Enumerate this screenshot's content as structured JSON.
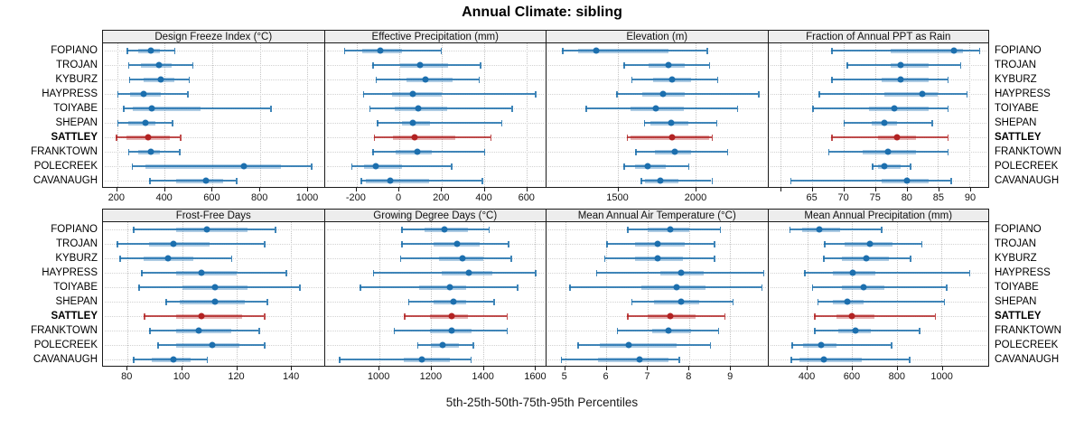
{
  "title": "Annual Climate: sibling",
  "footer": "5th-25th-50th-75th-95th Percentiles",
  "stations": [
    "FOPIANO",
    "TROJAN",
    "KYBURZ",
    "HAYPRESS",
    "TOIYABE",
    "SHEPAN",
    "SATTLEY",
    "FRANKTOWN",
    "POLECREEK",
    "CAVANAUGH"
  ],
  "highlight_station": "SATTLEY",
  "colors": {
    "series_line": "#1f71ad",
    "series_dot": "#1c6fae",
    "highlight_line": "#b22222",
    "highlight_dot": "#b22222",
    "strip_bg": "#ededed",
    "grid": "#c4c4c4"
  },
  "chart_data": {
    "type": "scatter",
    "mark": "median-dot-with-5-25-50-75-95-percentile-whiskers",
    "title": "Annual Climate: sibling",
    "xlabel": "5th-25th-50th-75th-95th Percentiles",
    "categories": [
      "FOPIANO",
      "TROJAN",
      "KYBURZ",
      "HAYPRESS",
      "TOIYABE",
      "SHEPAN",
      "SATTLEY",
      "FRANKTOWN",
      "POLECREEK",
      "CAVANAUGH"
    ],
    "percentiles": [
      "5th",
      "25th",
      "50th",
      "75th",
      "95th"
    ],
    "panels": [
      {
        "title": "Design Freeze Index (°C)",
        "xlim": [
          140,
          1070
        ],
        "ticks": [
          200,
          400,
          600,
          800,
          1000
        ],
        "tick_labels": [
          "200",
          "400",
          "600",
          "800",
          "1000"
        ],
        "values": [
          [
            240,
            290,
            340,
            380,
            440
          ],
          [
            245,
            300,
            375,
            430,
            515
          ],
          [
            250,
            310,
            385,
            440,
            500
          ],
          [
            200,
            255,
            310,
            385,
            495
          ],
          [
            225,
            265,
            345,
            550,
            845
          ],
          [
            200,
            245,
            320,
            360,
            430
          ],
          [
            195,
            240,
            330,
            420,
            465
          ],
          [
            245,
            290,
            340,
            380,
            460
          ],
          [
            260,
            320,
            735,
            890,
            1015
          ],
          [
            335,
            450,
            575,
            645,
            700
          ]
        ]
      },
      {
        "title": "Effective Precipitation (mm)",
        "xlim": [
          -350,
          690
        ],
        "ticks": [
          -200,
          0,
          200,
          400,
          600
        ],
        "tick_labels": [
          "-200",
          "0",
          "200",
          "400",
          "600"
        ],
        "values": [
          [
            -260,
            -175,
            -90,
            15,
            195
          ],
          [
            -125,
            5,
            100,
            230,
            380
          ],
          [
            -110,
            35,
            125,
            250,
            375
          ],
          [
            -170,
            -35,
            65,
            200,
            640
          ],
          [
            -140,
            -20,
            90,
            225,
            530
          ],
          [
            -105,
            15,
            65,
            145,
            480
          ],
          [
            -120,
            -30,
            75,
            265,
            430
          ],
          [
            -125,
            -15,
            85,
            155,
            400
          ],
          [
            -225,
            -165,
            -110,
            15,
            245
          ],
          [
            -180,
            -155,
            -40,
            140,
            390
          ]
        ]
      },
      {
        "title": "Elevation (m)",
        "xlim": [
          1040,
          2460
        ],
        "ticks": [
          1500,
          2000
        ],
        "tick_labels": [
          "1500",
          "2000"
        ],
        "values": [
          [
            1140,
            1245,
            1360,
            1825,
            2070
          ],
          [
            1535,
            1695,
            1825,
            1930,
            2085
          ],
          [
            1585,
            1725,
            1850,
            1970,
            2135
          ],
          [
            1490,
            1655,
            1790,
            1930,
            2400
          ],
          [
            1290,
            1580,
            1745,
            1920,
            2265
          ],
          [
            1665,
            1705,
            1840,
            1950,
            2130
          ],
          [
            1555,
            1580,
            1845,
            2085,
            2100
          ],
          [
            1610,
            1735,
            1865,
            1970,
            2200
          ],
          [
            1535,
            1610,
            1690,
            1805,
            1950
          ],
          [
            1645,
            1675,
            1770,
            1890,
            2100
          ]
        ]
      },
      {
        "title": "Fraction of Annual PPT as Rain",
        "xlim": [
          58,
          93
        ],
        "ticks": [
          60,
          65,
          70,
          75,
          80,
          85,
          90
        ],
        "tick_labels": [
          "",
          "65",
          "70",
          "75",
          "80",
          "85",
          "90"
        ],
        "values": [
          [
            68,
            77.5,
            87.5,
            89,
            91.5
          ],
          [
            70.5,
            77.5,
            79,
            83.5,
            88.5
          ],
          [
            68,
            76,
            79,
            83.5,
            86.5
          ],
          [
            66,
            76.5,
            82.5,
            85,
            89.5
          ],
          [
            65,
            74,
            78,
            83.5,
            86.5
          ],
          [
            70,
            74.5,
            76.5,
            78.5,
            84
          ],
          [
            68,
            75.5,
            78.5,
            81.5,
            86.5
          ],
          [
            67.5,
            73,
            77,
            81.5,
            86.5
          ],
          [
            74.5,
            75.5,
            76.5,
            79,
            80.5
          ],
          [
            61.5,
            76,
            80,
            83.5,
            87
          ]
        ]
      },
      {
        "title": "Frost-Free Days",
        "xlim": [
          71,
          152
        ],
        "ticks": [
          80,
          100,
          120,
          140
        ],
        "tick_labels": [
          "80",
          "100",
          "120",
          "140"
        ],
        "values": [
          [
            82,
            98,
            109,
            124,
            134
          ],
          [
            76,
            88,
            97,
            110,
            130
          ],
          [
            77,
            86,
            95,
            104,
            118
          ],
          [
            85,
            98,
            107,
            120,
            138
          ],
          [
            84,
            100,
            112,
            124,
            143
          ],
          [
            94,
            99,
            112,
            123,
            131
          ],
          [
            86,
            98,
            107,
            122,
            130
          ],
          [
            88,
            98,
            106,
            118,
            128
          ],
          [
            91,
            98,
            111,
            121,
            130
          ],
          [
            82,
            89,
            97,
            103,
            109
          ]
        ]
      },
      {
        "title": "Growing Degree Days (°C)",
        "xlim": [
          790,
          1640
        ],
        "ticks": [
          1000,
          1200,
          1400,
          1600
        ],
        "tick_labels": [
          "1000",
          "1200",
          "1400",
          "1600"
        ],
        "values": [
          [
            1085,
            1175,
            1250,
            1340,
            1420
          ],
          [
            1085,
            1210,
            1300,
            1385,
            1495
          ],
          [
            1080,
            1230,
            1320,
            1400,
            1505
          ],
          [
            975,
            1240,
            1345,
            1435,
            1600
          ],
          [
            925,
            1155,
            1270,
            1335,
            1530
          ],
          [
            1110,
            1210,
            1285,
            1335,
            1440
          ],
          [
            1095,
            1195,
            1280,
            1340,
            1490
          ],
          [
            1055,
            1195,
            1280,
            1355,
            1490
          ],
          [
            1145,
            1200,
            1245,
            1305,
            1360
          ],
          [
            845,
            1095,
            1165,
            1270,
            1350
          ]
        ]
      },
      {
        "title": "Mean Annual Air Temperature (°C)",
        "xlim": [
          4.55,
          9.9
        ],
        "ticks": [
          5,
          6,
          7,
          8,
          9
        ],
        "tick_labels": [
          "5",
          "6",
          "7",
          "8",
          "9"
        ],
        "values": [
          [
            6.5,
            7.0,
            7.55,
            8.0,
            8.75
          ],
          [
            6.0,
            6.7,
            7.25,
            7.9,
            8.6
          ],
          [
            5.95,
            6.7,
            7.25,
            7.85,
            8.6
          ],
          [
            5.75,
            7.3,
            7.8,
            8.35,
            9.8
          ],
          [
            5.1,
            6.85,
            7.7,
            8.4,
            9.75
          ],
          [
            6.6,
            7.15,
            7.8,
            8.25,
            9.05
          ],
          [
            6.5,
            7.0,
            7.55,
            8.15,
            8.85
          ],
          [
            6.25,
            7.1,
            7.5,
            8.05,
            8.7
          ],
          [
            5.3,
            5.85,
            6.55,
            7.7,
            8.5
          ],
          [
            4.9,
            5.8,
            6.8,
            7.5,
            7.75
          ]
        ]
      },
      {
        "title": "Mean Annual Precipitation (mm)",
        "xlim": [
          225,
          1210
        ],
        "ticks": [
          400,
          600,
          800,
          1000
        ],
        "tick_labels": [
          "400",
          "600",
          "800",
          "1000"
        ],
        "values": [
          [
            320,
            375,
            455,
            545,
            730
          ],
          [
            475,
            565,
            680,
            780,
            910
          ],
          [
            470,
            555,
            665,
            765,
            860
          ],
          [
            385,
            515,
            605,
            705,
            1125
          ],
          [
            420,
            555,
            650,
            745,
            1020
          ],
          [
            445,
            515,
            580,
            650,
            1010
          ],
          [
            430,
            530,
            600,
            700,
            970
          ],
          [
            430,
            540,
            615,
            685,
            900
          ],
          [
            330,
            380,
            460,
            530,
            775
          ],
          [
            325,
            365,
            475,
            645,
            855
          ]
        ]
      }
    ]
  }
}
